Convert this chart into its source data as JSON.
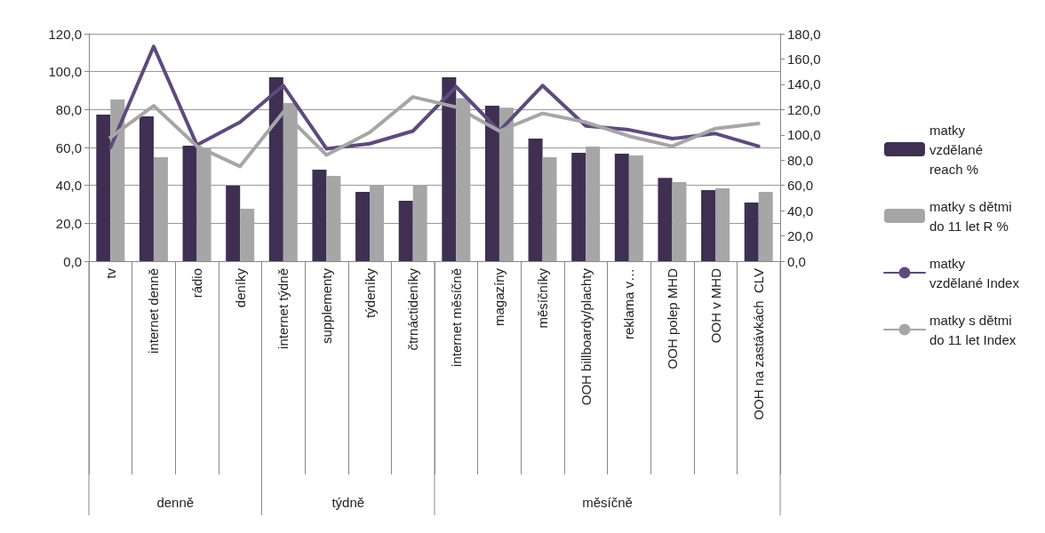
{
  "chart_data": {
    "type": "bar",
    "categories": [
      "tv",
      "internet denně",
      "rádio",
      "deníky",
      "internet týdně",
      "supplementy",
      "týdeníky",
      "čtrnáctideníky",
      "internet měsíčně",
      "magazíny",
      "měsíčníky",
      "OOH billboardy/plachty",
      "reklama v…",
      "OOH polep MHD",
      "OOH v MHD",
      "OOH na zastávkách  CLV"
    ],
    "series": [
      {
        "name": "matky vzdělané reach %",
        "color": "#3f2f52",
        "values": [
          77.3,
          76.4,
          60.9,
          39.8,
          97.0,
          48.3,
          36.6,
          31.9,
          97.0,
          82.0,
          64.7,
          57.2,
          56.7,
          44.0,
          37.5,
          30.9
        ]
      },
      {
        "name": "matky s dětmi do 11 let R %",
        "color": "#a6a6a6",
        "values": [
          85.3,
          54.8,
          60.0,
          27.7,
          83.4,
          45.0,
          40.3,
          40.3,
          86.0,
          81.0,
          54.8,
          60.5,
          55.8,
          41.7,
          38.4,
          36.6
        ]
      },
      {
        "name": "matky vzdělané Index",
        "type": "line",
        "axis": "y2",
        "color": "#5e4a7e",
        "values": [
          90,
          170,
          92,
          110,
          139,
          89,
          93,
          103,
          138,
          103,
          139,
          107,
          104,
          97,
          101,
          91
        ]
      },
      {
        "name": "matky s dětmi do 11 let Index",
        "type": "line",
        "axis": "y2",
        "color": "#a6a6a6",
        "values": [
          98,
          123,
          91,
          75,
          118,
          84,
          102,
          130,
          122,
          103,
          117,
          110,
          99,
          91,
          105,
          109
        ]
      }
    ],
    "ylim": [
      0,
      120
    ],
    "yticks": [
      {
        "value": 0,
        "label": "0,0"
      },
      {
        "value": 20,
        "label": "20,0"
      },
      {
        "value": 40,
        "label": "40,0"
      },
      {
        "value": 60,
        "label": "60,0"
      },
      {
        "value": 80,
        "label": "80,0"
      },
      {
        "value": 100,
        "label": "100,0"
      },
      {
        "value": 120,
        "label": "120,0"
      }
    ],
    "y2lim": [
      0,
      180
    ],
    "y2ticks": [
      {
        "value": 0,
        "label": "0,0"
      },
      {
        "value": 20,
        "label": "20,0"
      },
      {
        "value": 40,
        "label": "40,0"
      },
      {
        "value": 60,
        "label": "60,0"
      },
      {
        "value": 80,
        "label": "80,0"
      },
      {
        "value": 100,
        "label": "100,0"
      },
      {
        "value": 120,
        "label": "120,0"
      },
      {
        "value": 140,
        "label": "140,0"
      },
      {
        "value": 160,
        "label": "160,0"
      },
      {
        "value": 180,
        "label": "180,0"
      }
    ],
    "annotations": [
      "denně",
      "týdně",
      "měsíčně"
    ],
    "grid": "y",
    "legend": "right",
    "marker": "none",
    "line_style": "solid"
  }
}
